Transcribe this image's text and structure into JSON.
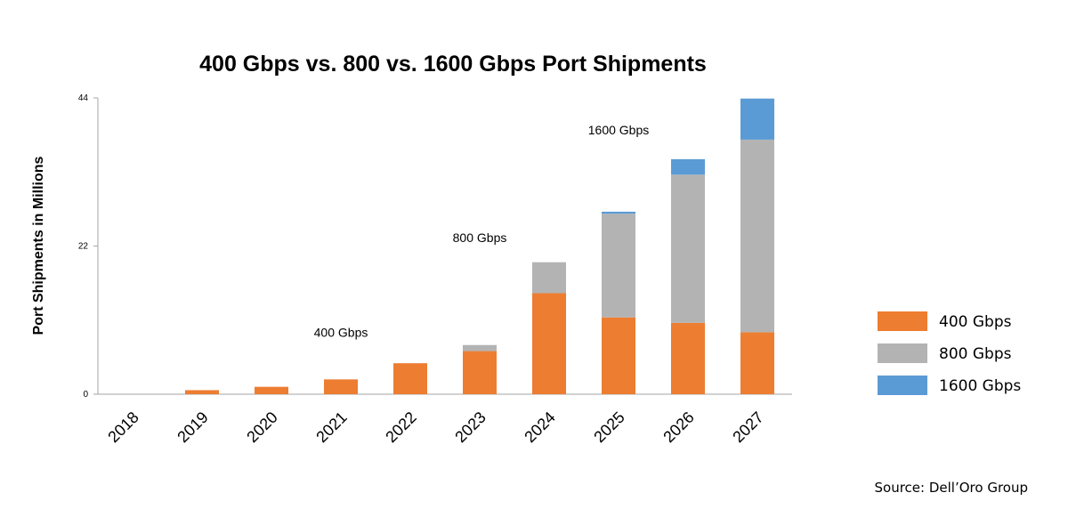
{
  "chart_data": {
    "type": "bar",
    "stacked": true,
    "title": "400 Gbps vs. 800 vs. 1600 Gbps Port Shipments",
    "ylabel": "Port Shipments in Millions",
    "xlabel": "",
    "ylim": [
      0,
      44
    ],
    "yticks": [
      0,
      22,
      44
    ],
    "categories": [
      "2018",
      "2019",
      "2020",
      "2021",
      "2022",
      "2023",
      "2024",
      "2025",
      "2026",
      "2027"
    ],
    "series": [
      {
        "name": "400 Gbps",
        "color": "#ed7d31",
        "values": [
          0,
          0.6,
          1.1,
          2.2,
          4.6,
          6.4,
          15.0,
          11.4,
          10.6,
          9.2
        ]
      },
      {
        "name": "800 Gbps",
        "color": "#b3b3b3",
        "values": [
          0,
          0,
          0,
          0,
          0,
          0.9,
          4.6,
          15.4,
          22.0,
          28.6
        ]
      },
      {
        "name": "1600 Gbps",
        "color": "#5b9bd5",
        "values": [
          0,
          0,
          0,
          0,
          0,
          0,
          0,
          0.3,
          2.3,
          6.1
        ]
      }
    ],
    "annotations": [
      {
        "text": "400 Gbps",
        "category": "2021",
        "y": 8.5
      },
      {
        "text": "800 Gbps",
        "category": "2023",
        "y": 22.6
      },
      {
        "text": "1600 Gbps",
        "category": "2025",
        "y": 38.6
      }
    ],
    "grid": false,
    "legend_position": "right"
  },
  "source": "Source: Dell’Oro Group"
}
